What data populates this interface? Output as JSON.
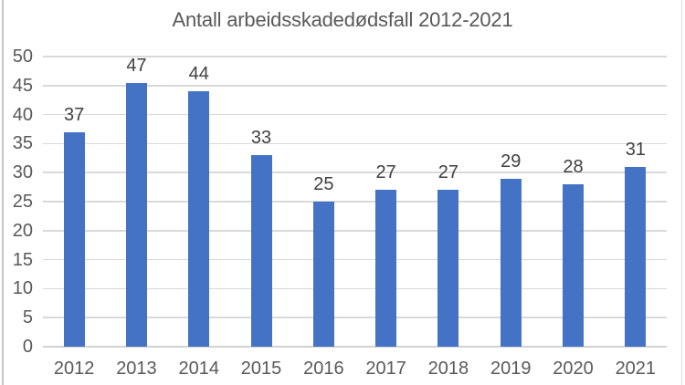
{
  "chart_data": {
    "type": "bar",
    "title": "Antall arbeidsskadedødsfall 2012-2021",
    "categories": [
      "2012",
      "2013",
      "2014",
      "2015",
      "2016",
      "2017",
      "2018",
      "2019",
      "2020",
      "2021"
    ],
    "values": [
      37,
      47,
      44,
      33,
      25,
      27,
      27,
      29,
      28,
      31
    ],
    "xlabel": "",
    "ylabel": "",
    "ylim": [
      0,
      50
    ],
    "yticks": [
      0,
      5,
      10,
      15,
      20,
      25,
      30,
      35,
      40,
      45,
      50
    ],
    "grid": true,
    "legend": "none",
    "data_labels": "outside-end"
  },
  "colors": {
    "bar_fill": "#4472C4",
    "gridline": "#d9d9d9",
    "axis_line": "#d2d2d2",
    "title_text": "#595959",
    "axis_label_text": "#595959",
    "data_label_text": "#404040"
  }
}
